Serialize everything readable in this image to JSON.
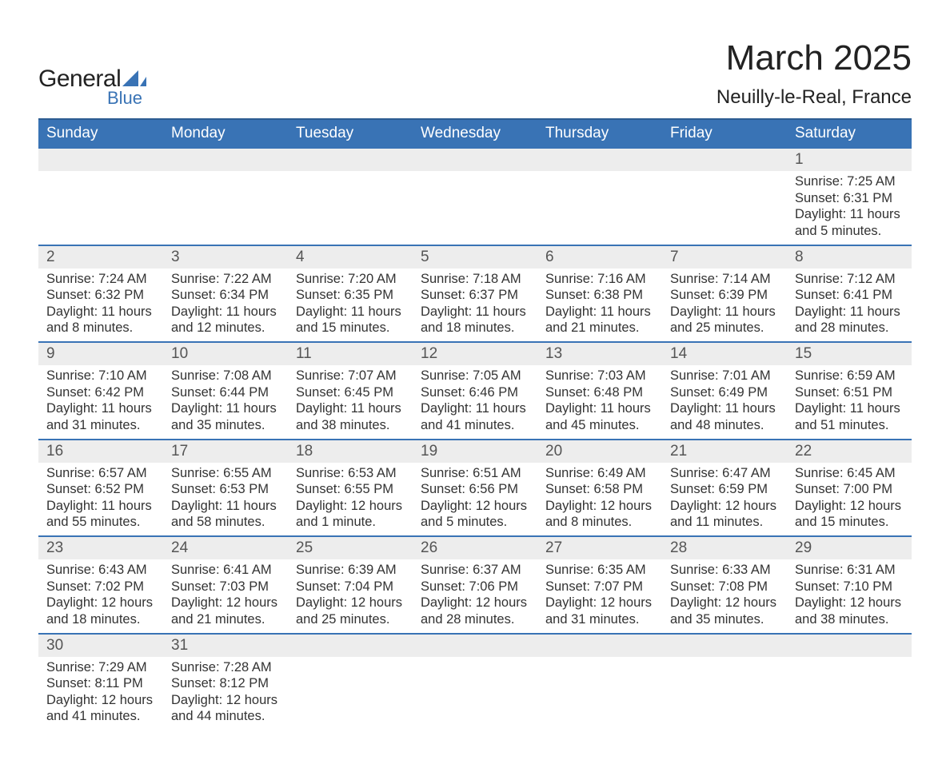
{
  "brand": {
    "name": "General",
    "sub": "Blue"
  },
  "title": "March 2025",
  "location": "Neuilly-le-Real, France",
  "colors": {
    "header_bg": "#3973b5",
    "header_text": "#ffffff",
    "row_divider": "#3973b5",
    "daynum_bg": "#ededed",
    "daynum_text": "#555555",
    "body_text": "#333333",
    "page_bg": "#ffffff",
    "logo_accent": "#3973b5"
  },
  "typography": {
    "title_fontsize": 44,
    "location_fontsize": 24,
    "header_fontsize": 19,
    "daynum_fontsize": 19,
    "cell_fontsize": 16.5
  },
  "weekdays": [
    "Sunday",
    "Monday",
    "Tuesday",
    "Wednesday",
    "Thursday",
    "Friday",
    "Saturday"
  ],
  "weeks": [
    [
      null,
      null,
      null,
      null,
      null,
      null,
      {
        "n": "1",
        "sunrise": "Sunrise: 7:25 AM",
        "sunset": "Sunset: 6:31 PM",
        "daylight": "Daylight: 11 hours and 5 minutes."
      }
    ],
    [
      {
        "n": "2",
        "sunrise": "Sunrise: 7:24 AM",
        "sunset": "Sunset: 6:32 PM",
        "daylight": "Daylight: 11 hours and 8 minutes."
      },
      {
        "n": "3",
        "sunrise": "Sunrise: 7:22 AM",
        "sunset": "Sunset: 6:34 PM",
        "daylight": "Daylight: 11 hours and 12 minutes."
      },
      {
        "n": "4",
        "sunrise": "Sunrise: 7:20 AM",
        "sunset": "Sunset: 6:35 PM",
        "daylight": "Daylight: 11 hours and 15 minutes."
      },
      {
        "n": "5",
        "sunrise": "Sunrise: 7:18 AM",
        "sunset": "Sunset: 6:37 PM",
        "daylight": "Daylight: 11 hours and 18 minutes."
      },
      {
        "n": "6",
        "sunrise": "Sunrise: 7:16 AM",
        "sunset": "Sunset: 6:38 PM",
        "daylight": "Daylight: 11 hours and 21 minutes."
      },
      {
        "n": "7",
        "sunrise": "Sunrise: 7:14 AM",
        "sunset": "Sunset: 6:39 PM",
        "daylight": "Daylight: 11 hours and 25 minutes."
      },
      {
        "n": "8",
        "sunrise": "Sunrise: 7:12 AM",
        "sunset": "Sunset: 6:41 PM",
        "daylight": "Daylight: 11 hours and 28 minutes."
      }
    ],
    [
      {
        "n": "9",
        "sunrise": "Sunrise: 7:10 AM",
        "sunset": "Sunset: 6:42 PM",
        "daylight": "Daylight: 11 hours and 31 minutes."
      },
      {
        "n": "10",
        "sunrise": "Sunrise: 7:08 AM",
        "sunset": "Sunset: 6:44 PM",
        "daylight": "Daylight: 11 hours and 35 minutes."
      },
      {
        "n": "11",
        "sunrise": "Sunrise: 7:07 AM",
        "sunset": "Sunset: 6:45 PM",
        "daylight": "Daylight: 11 hours and 38 minutes."
      },
      {
        "n": "12",
        "sunrise": "Sunrise: 7:05 AM",
        "sunset": "Sunset: 6:46 PM",
        "daylight": "Daylight: 11 hours and 41 minutes."
      },
      {
        "n": "13",
        "sunrise": "Sunrise: 7:03 AM",
        "sunset": "Sunset: 6:48 PM",
        "daylight": "Daylight: 11 hours and 45 minutes."
      },
      {
        "n": "14",
        "sunrise": "Sunrise: 7:01 AM",
        "sunset": "Sunset: 6:49 PM",
        "daylight": "Daylight: 11 hours and 48 minutes."
      },
      {
        "n": "15",
        "sunrise": "Sunrise: 6:59 AM",
        "sunset": "Sunset: 6:51 PM",
        "daylight": "Daylight: 11 hours and 51 minutes."
      }
    ],
    [
      {
        "n": "16",
        "sunrise": "Sunrise: 6:57 AM",
        "sunset": "Sunset: 6:52 PM",
        "daylight": "Daylight: 11 hours and 55 minutes."
      },
      {
        "n": "17",
        "sunrise": "Sunrise: 6:55 AM",
        "sunset": "Sunset: 6:53 PM",
        "daylight": "Daylight: 11 hours and 58 minutes."
      },
      {
        "n": "18",
        "sunrise": "Sunrise: 6:53 AM",
        "sunset": "Sunset: 6:55 PM",
        "daylight": "Daylight: 12 hours and 1 minute."
      },
      {
        "n": "19",
        "sunrise": "Sunrise: 6:51 AM",
        "sunset": "Sunset: 6:56 PM",
        "daylight": "Daylight: 12 hours and 5 minutes."
      },
      {
        "n": "20",
        "sunrise": "Sunrise: 6:49 AM",
        "sunset": "Sunset: 6:58 PM",
        "daylight": "Daylight: 12 hours and 8 minutes."
      },
      {
        "n": "21",
        "sunrise": "Sunrise: 6:47 AM",
        "sunset": "Sunset: 6:59 PM",
        "daylight": "Daylight: 12 hours and 11 minutes."
      },
      {
        "n": "22",
        "sunrise": "Sunrise: 6:45 AM",
        "sunset": "Sunset: 7:00 PM",
        "daylight": "Daylight: 12 hours and 15 minutes."
      }
    ],
    [
      {
        "n": "23",
        "sunrise": "Sunrise: 6:43 AM",
        "sunset": "Sunset: 7:02 PM",
        "daylight": "Daylight: 12 hours and 18 minutes."
      },
      {
        "n": "24",
        "sunrise": "Sunrise: 6:41 AM",
        "sunset": "Sunset: 7:03 PM",
        "daylight": "Daylight: 12 hours and 21 minutes."
      },
      {
        "n": "25",
        "sunrise": "Sunrise: 6:39 AM",
        "sunset": "Sunset: 7:04 PM",
        "daylight": "Daylight: 12 hours and 25 minutes."
      },
      {
        "n": "26",
        "sunrise": "Sunrise: 6:37 AM",
        "sunset": "Sunset: 7:06 PM",
        "daylight": "Daylight: 12 hours and 28 minutes."
      },
      {
        "n": "27",
        "sunrise": "Sunrise: 6:35 AM",
        "sunset": "Sunset: 7:07 PM",
        "daylight": "Daylight: 12 hours and 31 minutes."
      },
      {
        "n": "28",
        "sunrise": "Sunrise: 6:33 AM",
        "sunset": "Sunset: 7:08 PM",
        "daylight": "Daylight: 12 hours and 35 minutes."
      },
      {
        "n": "29",
        "sunrise": "Sunrise: 6:31 AM",
        "sunset": "Sunset: 7:10 PM",
        "daylight": "Daylight: 12 hours and 38 minutes."
      }
    ],
    [
      {
        "n": "30",
        "sunrise": "Sunrise: 7:29 AM",
        "sunset": "Sunset: 8:11 PM",
        "daylight": "Daylight: 12 hours and 41 minutes."
      },
      {
        "n": "31",
        "sunrise": "Sunrise: 7:28 AM",
        "sunset": "Sunset: 8:12 PM",
        "daylight": "Daylight: 12 hours and 44 minutes."
      },
      null,
      null,
      null,
      null,
      null
    ]
  ]
}
